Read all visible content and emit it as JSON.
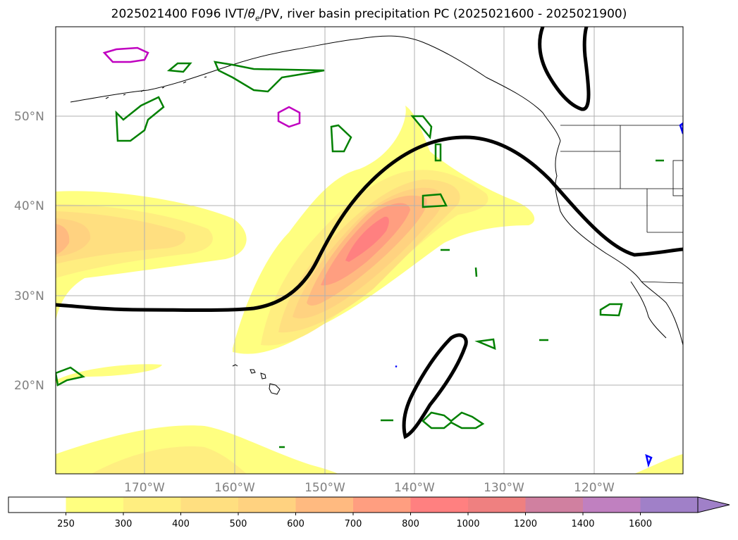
{
  "title": {
    "prefix": "2025021400 F096 IVT/",
    "theta": "θ",
    "theta_sub": "e",
    "suffix": "/PV, river basin precipitation PC (2025021600 - 2025021900)"
  },
  "lat_labels": [
    "50°N",
    "40°N",
    "30°N",
    "20°N"
  ],
  "lon_labels": [
    "170°W",
    "160°W",
    "150°W",
    "140°W",
    "130°W",
    "120°W"
  ],
  "colorbar": {
    "ticks": [
      "250",
      "300",
      "400",
      "500",
      "600",
      "700",
      "800",
      "1000",
      "1200",
      "1400",
      "1600"
    ],
    "colors": [
      "#ffffff",
      "#ffff80",
      "#ffee80",
      "#ffdf80",
      "#ffd280",
      "#ffba80",
      "#ff9e80",
      "#ff8080",
      "#ef8080",
      "#d080a0",
      "#c080c0",
      "#a080c8"
    ],
    "extend": "max"
  },
  "colors": {
    "ivt_low": "#ffff80",
    "ivt_mid": "#ffd280",
    "ivt_high": "#ff8080",
    "pv_contour": "#000000",
    "theta_e_contour": "#008000",
    "magenta_contour": "#c000c0",
    "blue_contour": "#0000ff",
    "coast": "#000000",
    "grid": "#b0b0b0"
  }
}
